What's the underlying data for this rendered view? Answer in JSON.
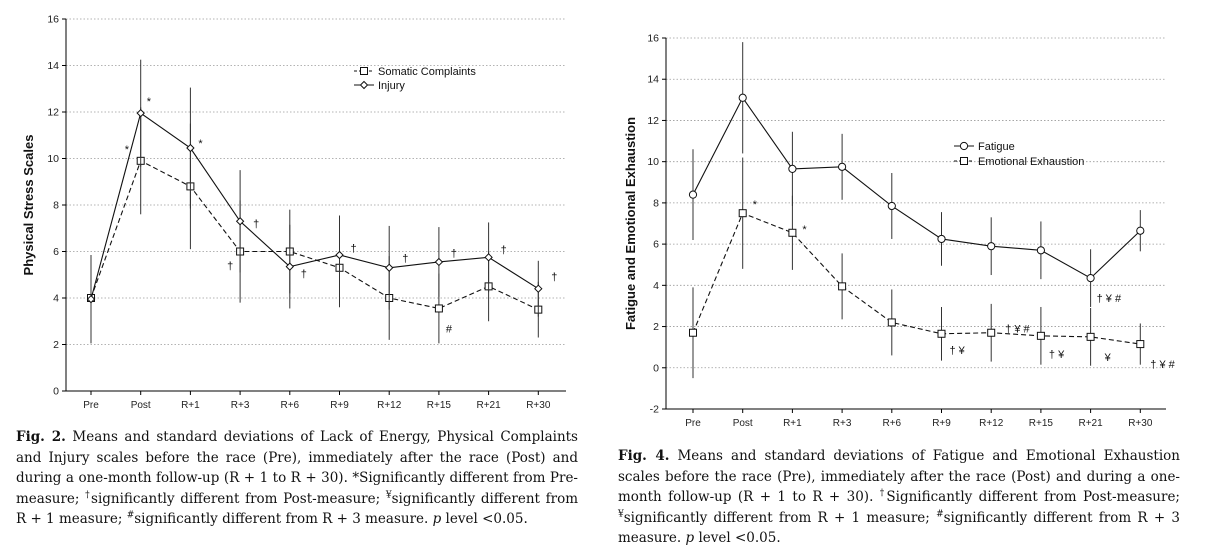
{
  "chart_data": [
    {
      "type": "line",
      "categories": [
        "Pre",
        "Post",
        "R+1",
        "R+3",
        "R+6",
        "R+9",
        "R+12",
        "R+15",
        "R+21",
        "R+30"
      ],
      "ylabel": "Physical Stress Scales",
      "xlabel": "",
      "ylim": [
        0,
        16
      ],
      "yticks": [
        "0",
        "2",
        "4",
        "6",
        "8",
        "10",
        "12",
        "14",
        "16"
      ],
      "grid": "horizontal dashed",
      "legend_position": "top-right",
      "series": [
        {
          "name": "Somatic Complaints",
          "marker": "square",
          "line": "dashed",
          "values": [
            4.0,
            9.9,
            8.8,
            6.0,
            6.0,
            5.3,
            4.0,
            3.55,
            4.5,
            3.5
          ],
          "sd": [
            1.8,
            2.3,
            2.7,
            2.2,
            1.8,
            1.7,
            1.8,
            1.5,
            1.5,
            1.2
          ]
        },
        {
          "name": "Injury",
          "marker": "diamond",
          "line": "solid",
          "values": [
            3.95,
            11.95,
            10.45,
            7.3,
            5.35,
            5.85,
            5.3,
            5.55,
            5.75,
            4.4
          ],
          "sd": [
            1.9,
            2.3,
            2.6,
            2.2,
            1.8,
            1.7,
            1.8,
            1.5,
            1.5,
            1.2
          ]
        }
      ],
      "annotations": [
        {
          "category": "Post",
          "series": "Somatic Complaints",
          "text": "*"
        },
        {
          "category": "Post",
          "series": "Injury",
          "text": "*"
        },
        {
          "category": "R+1",
          "series": "Injury",
          "text": "*"
        },
        {
          "category": "R+3",
          "series": "Injury",
          "text": "†"
        },
        {
          "category": "R+3",
          "series": "Somatic Complaints",
          "text": "†"
        },
        {
          "category": "R+6",
          "series": "Somatic Complaints",
          "text": "†"
        },
        {
          "category": "R+9",
          "series": "Injury",
          "text": "†"
        },
        {
          "category": "R+12",
          "series": "Injury",
          "text": "†"
        },
        {
          "category": "R+15",
          "series": "Injury",
          "text": "†"
        },
        {
          "category": "R+15",
          "series": "Somatic Complaints",
          "text": "#"
        },
        {
          "category": "R+21",
          "series": "Injury",
          "text": "†"
        },
        {
          "category": "R+30",
          "series": "Injury",
          "text": "†"
        }
      ]
    },
    {
      "type": "line",
      "categories": [
        "Pre",
        "Post",
        "R+1",
        "R+3",
        "R+6",
        "R+9",
        "R+12",
        "R+15",
        "R+21",
        "R+30"
      ],
      "ylabel": "Fatigue and Emotional Exhaustion",
      "xlabel": "",
      "ylim": [
        -2,
        16
      ],
      "yticks": [
        "-2",
        "0",
        "2",
        "4",
        "6",
        "8",
        "10",
        "12",
        "14",
        "16"
      ],
      "grid": "horizontal dashed",
      "legend_position": "top-right",
      "series": [
        {
          "name": "Fatigue",
          "marker": "circle",
          "line": "solid",
          "values": [
            8.4,
            13.1,
            9.65,
            9.75,
            7.85,
            6.25,
            5.9,
            5.7,
            4.35,
            6.65
          ],
          "sd": [
            2.2,
            2.7,
            1.8,
            1.6,
            1.6,
            1.3,
            1.4,
            1.4,
            1.4,
            1.0
          ]
        },
        {
          "name": "Emotional Exhaustion",
          "marker": "square",
          "line": "dashed",
          "values": [
            1.7,
            7.5,
            6.55,
            3.95,
            2.2,
            1.65,
            1.7,
            1.55,
            1.5,
            1.15
          ],
          "sd": [
            2.2,
            2.7,
            1.8,
            1.6,
            1.6,
            1.3,
            1.4,
            1.4,
            1.4,
            1.0
          ]
        }
      ],
      "annotations": [
        {
          "category": "Post",
          "series": "Emotional Exhaustion",
          "text": "*"
        },
        {
          "category": "R+1",
          "series": "Emotional Exhaustion",
          "text": "*"
        },
        {
          "category": "R+9",
          "series": "Emotional Exhaustion",
          "text": "† ¥"
        },
        {
          "category": "R+12",
          "series": "Emotional Exhaustion",
          "text": "† ¥ #"
        },
        {
          "category": "R+15",
          "series": "Emotional Exhaustion",
          "text": "† ¥"
        },
        {
          "category": "R+21",
          "series": "Fatigue",
          "text": "† ¥ #"
        },
        {
          "category": "R+21",
          "series": "Emotional Exhaustion",
          "text": "¥"
        },
        {
          "category": "R+30",
          "series": "Emotional Exhaustion",
          "text": "† ¥ #"
        }
      ]
    }
  ],
  "captions": {
    "fig2": {
      "label": "Fig. 2.",
      "text_a": " Means and standard deviations of Lack of Energy, Physical Complaints and Injury scales before the race (Pre), immediately after the race (Post) and during a one-month follow-up (R + 1 to R + 30). *Significantly different from Pre-measure; ",
      "sup1": "†",
      "text_b": "significantly different from Post-measure; ",
      "sup2": "¥",
      "text_c": "significantly different from R + 1 measure; ",
      "sup3": "#",
      "text_d": "significantly different from R + 3 measure. ",
      "p_italic": "p",
      "text_e": " level <0.05."
    },
    "fig4": {
      "label": "Fig. 4.",
      "text_a": " Means and standard deviations of Fatigue and Emotional Exhaustion scales before the race (Pre), immediately after the race (Post) and during a one-month follow-up (R + 1 to R + 30). ",
      "sup1": "†",
      "text_b": "Significantly different from Post-measure; ",
      "sup2": "¥",
      "text_c": "significantly different from R + 1 measure; ",
      "sup3": "#",
      "text_d": "significantly different from R + 3 measure. ",
      "p_italic": "p",
      "text_e": " level <0.05."
    }
  }
}
